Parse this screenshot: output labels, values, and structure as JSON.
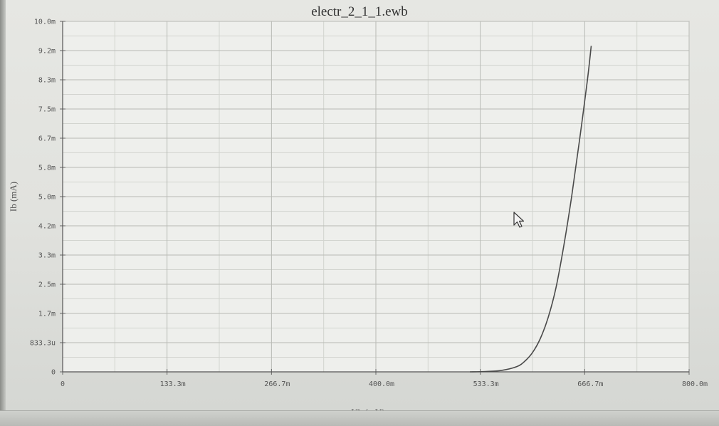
{
  "window": {
    "title": "electr_2_1_1.ewb"
  },
  "chart_data": {
    "type": "line",
    "title": "electr_2_1_1.ewb",
    "xlabel": "Ub (mV)",
    "ylabel": "Ib (mA)",
    "xlim": [
      0,
      800
    ],
    "ylim": [
      0,
      10
    ],
    "grid": true,
    "x_ticks": [
      {
        "value": 0,
        "label": "0"
      },
      {
        "value": 133.3,
        "label": "133.3m"
      },
      {
        "value": 266.7,
        "label": "266.7m"
      },
      {
        "value": 400.0,
        "label": "400.0m"
      },
      {
        "value": 533.3,
        "label": "533.3m"
      },
      {
        "value": 666.7,
        "label": "666.7m"
      },
      {
        "value": 800.0,
        "label": "800.0m"
      }
    ],
    "y_ticks": [
      {
        "value": 0,
        "label": "0"
      },
      {
        "value": 0.8333,
        "label": "833.3u"
      },
      {
        "value": 1.667,
        "label": "1.7m"
      },
      {
        "value": 2.5,
        "label": "2.5m"
      },
      {
        "value": 3.333,
        "label": "3.3m"
      },
      {
        "value": 4.167,
        "label": "4.2m"
      },
      {
        "value": 5.0,
        "label": "5.0m"
      },
      {
        "value": 5.833,
        "label": "5.8m"
      },
      {
        "value": 6.667,
        "label": "6.7m"
      },
      {
        "value": 7.5,
        "label": "7.5m"
      },
      {
        "value": 8.333,
        "label": "8.3m"
      },
      {
        "value": 9.167,
        "label": "9.2m"
      },
      {
        "value": 10.0,
        "label": "10.0m"
      }
    ],
    "series": [
      {
        "color": "#4a4a4a",
        "x": [
          520,
          540,
          560,
          580,
          590,
          600,
          610,
          620,
          630,
          640,
          650,
          660,
          670,
          675
        ],
        "y": [
          0.0,
          0.01,
          0.04,
          0.15,
          0.3,
          0.55,
          0.95,
          1.55,
          2.4,
          3.6,
          5.0,
          6.6,
          8.3,
          9.3
        ]
      }
    ]
  }
}
